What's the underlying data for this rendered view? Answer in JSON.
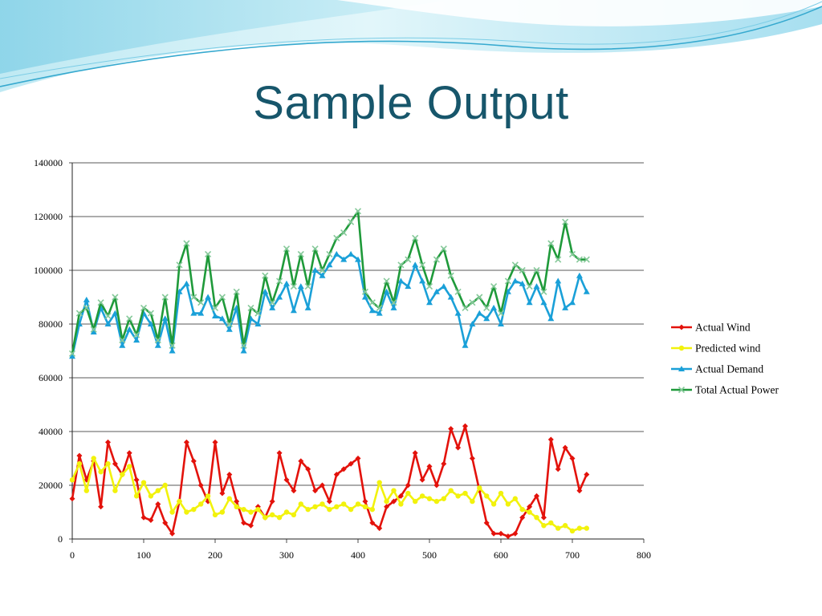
{
  "slide": {
    "title": "Sample Output"
  },
  "chart_data": {
    "type": "line",
    "title": "",
    "xlabel": "",
    "ylabel": "",
    "xlim": [
      0,
      800
    ],
    "ylim": [
      0,
      140000
    ],
    "x_ticks": [
      0,
      100,
      200,
      300,
      400,
      500,
      600,
      700,
      800
    ],
    "y_ticks": [
      0,
      20000,
      40000,
      60000,
      80000,
      100000,
      120000,
      140000
    ],
    "x_tick_labels": [
      "0",
      "100",
      "200",
      "300",
      "400",
      "500",
      "600",
      "700",
      "800"
    ],
    "y_tick_labels": [
      "0",
      "20000",
      "40000",
      "60000",
      "80000",
      "100000",
      "120000",
      "140000"
    ],
    "grid": "horizontal",
    "legend_position": "right",
    "x": [
      0,
      10,
      20,
      30,
      40,
      50,
      60,
      70,
      80,
      90,
      100,
      110,
      120,
      130,
      140,
      150,
      160,
      170,
      180,
      190,
      200,
      210,
      220,
      230,
      240,
      250,
      260,
      270,
      280,
      290,
      300,
      310,
      320,
      330,
      340,
      350,
      360,
      370,
      380,
      390,
      400,
      410,
      420,
      430,
      440,
      450,
      460,
      470,
      480,
      490,
      500,
      510,
      520,
      530,
      540,
      550,
      560,
      570,
      580,
      590,
      600,
      610,
      620,
      630,
      640,
      650,
      660,
      670,
      680,
      690,
      700,
      710,
      720
    ],
    "series": [
      {
        "name": "Actual Wind",
        "color": "#e3120b",
        "marker": "diamond",
        "values": [
          15000,
          31000,
          22000,
          29000,
          12000,
          36000,
          28000,
          24000,
          32000,
          22000,
          8000,
          7000,
          13000,
          6000,
          2000,
          14000,
          36000,
          29000,
          20000,
          14000,
          36000,
          17000,
          24000,
          14000,
          6000,
          5000,
          12000,
          8000,
          14000,
          32000,
          22000,
          18000,
          29000,
          26000,
          18000,
          20000,
          14000,
          24000,
          26000,
          28000,
          30000,
          14000,
          6000,
          4000,
          12000,
          14000,
          16000,
          20000,
          32000,
          22000,
          27000,
          20000,
          28000,
          41000,
          34000,
          42000,
          30000,
          18000,
          6000,
          2000,
          2000,
          1000,
          2000,
          8000,
          12000,
          16000,
          8000,
          37000,
          26000,
          34000,
          30000,
          18000,
          24000
        ]
      },
      {
        "name": "Predicted wind",
        "color": "#f2f20c",
        "marker": "circle",
        "values": [
          22000,
          28000,
          18000,
          30000,
          25000,
          28000,
          18000,
          24000,
          27000,
          16000,
          21000,
          16000,
          18000,
          20000,
          10000,
          14000,
          10000,
          11000,
          13000,
          16000,
          9000,
          10000,
          15000,
          12000,
          11000,
          10000,
          11000,
          8000,
          9000,
          8000,
          10000,
          9000,
          13000,
          11000,
          12000,
          13000,
          11000,
          12000,
          13000,
          11000,
          13000,
          12000,
          11000,
          21000,
          14000,
          18000,
          13000,
          17000,
          14000,
          16000,
          15000,
          14000,
          15000,
          18000,
          16000,
          17000,
          14000,
          19000,
          16000,
          13000,
          17000,
          13000,
          15000,
          11000,
          10000,
          8000,
          5000,
          6000,
          4000,
          5000,
          3000,
          4000,
          4000
        ]
      },
      {
        "name": "Actual Demand",
        "color": "#1aa0d8",
        "marker": "triangle",
        "values": [
          68000,
          80000,
          89000,
          77000,
          86000,
          80000,
          84000,
          72000,
          78000,
          74000,
          84000,
          80000,
          72000,
          82000,
          70000,
          92000,
          95000,
          84000,
          84000,
          90000,
          83000,
          82000,
          78000,
          86000,
          70000,
          82000,
          80000,
          92000,
          86000,
          90000,
          95000,
          85000,
          94000,
          86000,
          100000,
          98000,
          102000,
          106000,
          104000,
          106000,
          104000,
          90000,
          85000,
          84000,
          92000,
          86000,
          96000,
          94000,
          102000,
          96000,
          88000,
          92000,
          94000,
          90000,
          84000,
          72000,
          80000,
          84000,
          82000,
          86000,
          80000,
          92000,
          96000,
          95000,
          88000,
          94000,
          88000,
          82000,
          96000,
          86000,
          88000,
          98000,
          92000
        ]
      },
      {
        "name": "Total Actual Power",
        "color": "#1f9a3a",
        "marker": "x",
        "values": [
          69000,
          84000,
          86000,
          78000,
          88000,
          83000,
          90000,
          74000,
          82000,
          76000,
          86000,
          84000,
          74000,
          90000,
          72000,
          102000,
          110000,
          90000,
          88000,
          106000,
          86000,
          90000,
          80000,
          92000,
          72000,
          86000,
          84000,
          98000,
          88000,
          96000,
          108000,
          94000,
          106000,
          94000,
          108000,
          100000,
          106000,
          112000,
          114000,
          118000,
          122000,
          92000,
          88000,
          86000,
          96000,
          88000,
          102000,
          104000,
          112000,
          102000,
          94000,
          104000,
          108000,
          98000,
          92000,
          86000,
          88000,
          90000,
          86000,
          94000,
          84000,
          96000,
          102000,
          100000,
          94000,
          100000,
          92000,
          110000,
          104000,
          118000,
          106000,
          104000,
          104000
        ]
      }
    ]
  }
}
